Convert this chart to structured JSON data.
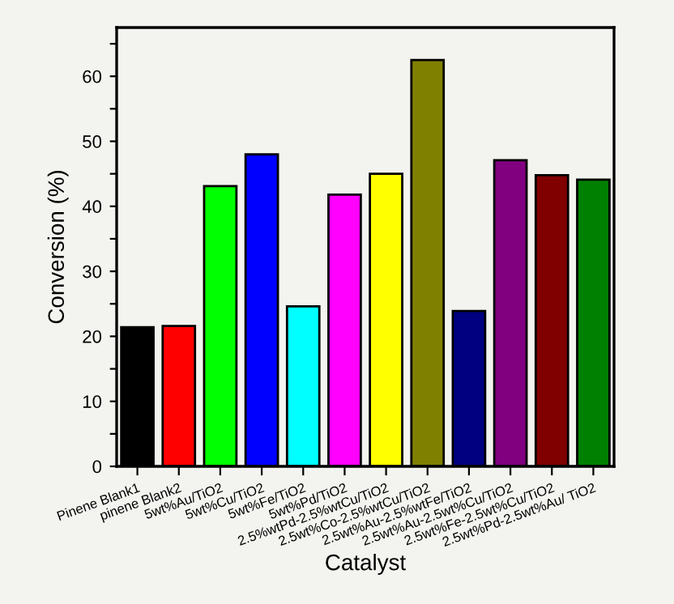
{
  "chart_data": {
    "type": "bar",
    "xlabel": "Catalyst",
    "ylabel": "Conversion (%)",
    "categories": [
      "Pinene Blank1",
      "pinene Blank2",
      "5wt%Au/TiO2",
      "5wt%Cu/TiO2",
      "5wt%Fe/TiO2",
      "5wt%Pd/TiO2",
      "2.5%wtPd-2.5%wtCu/TiO2",
      "2.5wt%Co-2.5%wtCu/TiO2",
      "2.5wt%Au-2.5%wtFe/TiO2",
      "2.5wt%Au-2.5wt%Cu/TiO2",
      "2.5wt%Fe-2.5wt%Cu/TiO2",
      "2.5wt%Pd-2.5wt%Au/ TiO2"
    ],
    "values": [
      21.4,
      21.6,
      43.1,
      48.0,
      24.6,
      41.8,
      45.0,
      62.5,
      23.9,
      47.1,
      44.8,
      44.1
    ],
    "colors": [
      "#000000",
      "#ff0000",
      "#00ff00",
      "#0000ff",
      "#00ffff",
      "#ff00ff",
      "#ffff00",
      "#808000",
      "#000080",
      "#800080",
      "#800000",
      "#008000"
    ],
    "ylim": [
      0,
      67.5
    ],
    "yticks": [
      0,
      {
        "value": 5,
        "label": null
      },
      10,
      {
        "value": 15,
        "label": null
      },
      20,
      {
        "value": 25,
        "label": null
      },
      30,
      {
        "value": 35,
        "label": null
      },
      40,
      {
        "value": 45,
        "label": null
      },
      50,
      {
        "value": 55,
        "label": null
      },
      60,
      {
        "value": 65,
        "label": null
      }
    ],
    "grid": false,
    "legend": false
  }
}
